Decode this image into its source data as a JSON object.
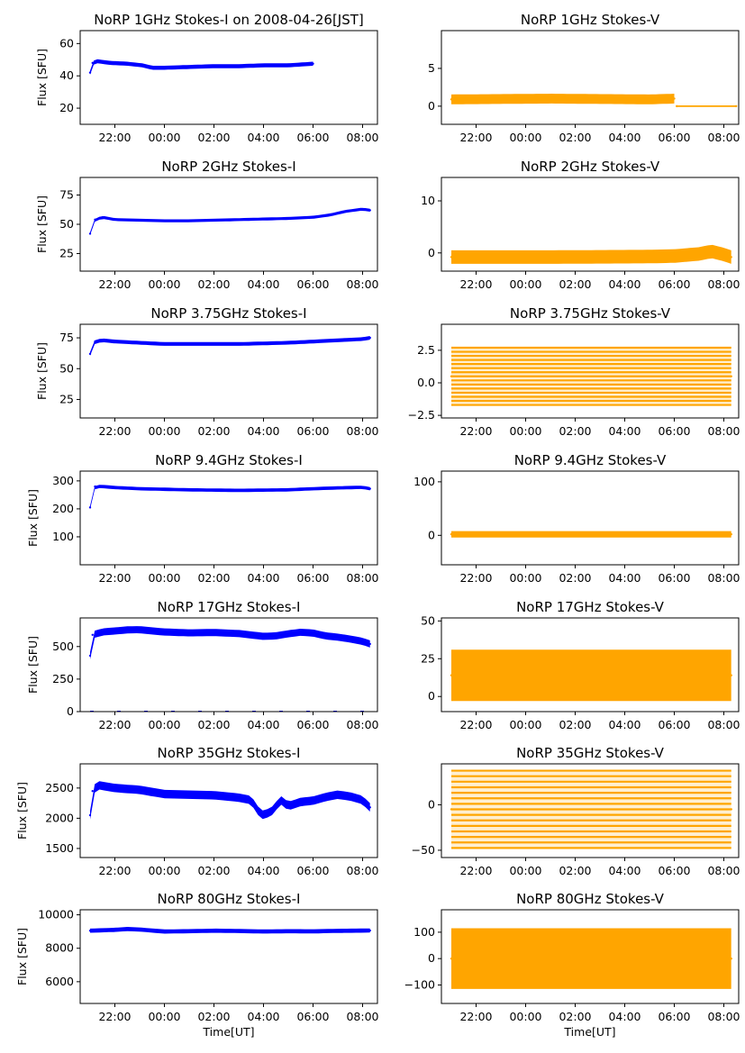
{
  "figure": {
    "xlabel": "Time[UT]",
    "x_tick_labels": [
      "22:00",
      "00:00",
      "02:00",
      "04:00",
      "06:00",
      "08:00"
    ],
    "colors": {
      "stokes_i": "#0000ff",
      "stokes_v": "#ffa500",
      "axis": "#000000",
      "background": "#ffffff"
    }
  },
  "chart_data": [
    {
      "id": "i-1ghz",
      "type": "scatter",
      "title": "NoRP 1GHz Stokes-I on 2008-04-26[JST]",
      "ylabel": "Flux [SFU]",
      "xlabel": "",
      "ylim": [
        10,
        68
      ],
      "yticks": [
        20,
        40,
        60
      ],
      "xlim": [
        20.6,
        32.6
      ],
      "series": [
        {
          "color": "#0000ff",
          "band": 2.5,
          "points": [
            [
              21.0,
              42
            ],
            [
              21.1,
              48
            ],
            [
              21.3,
              49
            ],
            [
              21.8,
              48
            ],
            [
              22.5,
              47.5
            ],
            [
              23.1,
              46.5
            ],
            [
              23.5,
              45
            ],
            [
              24.0,
              45
            ],
            [
              25.0,
              45.5
            ],
            [
              26.0,
              46
            ],
            [
              27.0,
              46
            ],
            [
              28.0,
              46.5
            ],
            [
              29.0,
              46.5
            ],
            [
              29.5,
              47
            ],
            [
              30.0,
              47.5
            ]
          ]
        }
      ]
    },
    {
      "id": "v-1ghz",
      "type": "scatter",
      "title": "NoRP 1GHz Stokes-V",
      "ylabel": "",
      "xlabel": "",
      "ylim": [
        -2.4,
        10
      ],
      "yticks": [
        0,
        5
      ],
      "xlim": [
        20.6,
        32.6
      ],
      "series": [
        {
          "color": "#ffa500",
          "band": 1.3,
          "points": [
            [
              21.0,
              0.9
            ],
            [
              25.0,
              1.0
            ],
            [
              29.0,
              0.9
            ],
            [
              30.0,
              1.0
            ]
          ]
        },
        {
          "color": "#ffa500",
          "band": 0.2,
          "points": [
            [
              30.1,
              0
            ],
            [
              32.5,
              0
            ]
          ]
        }
      ]
    },
    {
      "id": "i-2ghz",
      "type": "scatter",
      "title": "NoRP 2GHz Stokes-I",
      "ylabel": "Flux [SFU]",
      "xlabel": "",
      "ylim": [
        10,
        90
      ],
      "yticks": [
        25,
        50,
        75
      ],
      "xlim": [
        20.6,
        32.6
      ],
      "series": [
        {
          "color": "#0000ff",
          "band": 2.5,
          "points": [
            [
              21.0,
              42
            ],
            [
              21.2,
              54
            ],
            [
              21.5,
              56
            ],
            [
              22.0,
              54
            ],
            [
              23.0,
              53.5
            ],
            [
              24.0,
              53
            ],
            [
              25.0,
              53
            ],
            [
              26.0,
              53.5
            ],
            [
              27.0,
              54
            ],
            [
              28.0,
              54.5
            ],
            [
              29.0,
              55
            ],
            [
              30.0,
              56
            ],
            [
              30.7,
              58
            ],
            [
              31.3,
              61
            ],
            [
              32.0,
              63
            ],
            [
              32.3,
              62
            ]
          ]
        }
      ]
    },
    {
      "id": "v-2ghz",
      "type": "scatter",
      "title": "NoRP 2GHz Stokes-V",
      "ylabel": "",
      "xlabel": "",
      "ylim": [
        -3.5,
        14.5
      ],
      "yticks": [
        0,
        10
      ],
      "xlim": [
        20.6,
        32.6
      ],
      "series": [
        {
          "color": "#ffa500",
          "band": 2.6,
          "points": [
            [
              21.0,
              -0.8
            ],
            [
              25.0,
              -0.8
            ],
            [
              29.0,
              -0.7
            ],
            [
              30.0,
              -0.6
            ],
            [
              31.0,
              -0.2
            ],
            [
              31.5,
              0.3
            ],
            [
              32.0,
              -0.3
            ],
            [
              32.3,
              -0.8
            ]
          ]
        }
      ]
    },
    {
      "id": "i-375ghz",
      "type": "scatter",
      "title": "NoRP 3.75GHz Stokes-I",
      "ylabel": "Flux [SFU]",
      "xlabel": "",
      "ylim": [
        10,
        86
      ],
      "yticks": [
        25,
        50,
        75
      ],
      "xlim": [
        20.6,
        32.6
      ],
      "series": [
        {
          "color": "#0000ff",
          "band": 3,
          "points": [
            [
              21.0,
              62
            ],
            [
              21.2,
              72
            ],
            [
              21.5,
              73
            ],
            [
              22.0,
              72
            ],
            [
              23.0,
              71
            ],
            [
              24.0,
              70
            ],
            [
              25.0,
              70
            ],
            [
              26.0,
              70
            ],
            [
              27.0,
              70
            ],
            [
              28.0,
              70.5
            ],
            [
              29.0,
              71
            ],
            [
              30.0,
              72
            ],
            [
              31.0,
              73
            ],
            [
              32.0,
              74
            ],
            [
              32.3,
              75
            ]
          ]
        }
      ]
    },
    {
      "id": "v-375ghz",
      "type": "scatter",
      "title": "NoRP 3.75GHz Stokes-V",
      "ylabel": "",
      "xlabel": "",
      "ylim": [
        -2.7,
        4.5
      ],
      "yticks": [
        -2.5,
        0.0,
        2.5
      ],
      "xlim": [
        20.6,
        32.6
      ],
      "series": [
        {
          "color": "#ffa500",
          "band": 4.4,
          "striped": true,
          "points": [
            [
              21.0,
              0.5
            ],
            [
              32.3,
              0.5
            ]
          ]
        }
      ]
    },
    {
      "id": "i-94ghz",
      "type": "scatter",
      "title": "NoRP 9.4GHz Stokes-I",
      "ylabel": "Flux [SFU]",
      "xlabel": "",
      "ylim": [
        0,
        335
      ],
      "yticks": [
        100,
        200,
        300
      ],
      "xlim": [
        20.6,
        32.6
      ],
      "series": [
        {
          "color": "#0000ff",
          "band": 12,
          "points": [
            [
              21.0,
              205
            ],
            [
              21.2,
              280
            ],
            [
              21.5,
              280
            ],
            [
              22.0,
              276
            ],
            [
              23.0,
              272
            ],
            [
              24.0,
              270
            ],
            [
              25.0,
              268
            ],
            [
              26.0,
              267
            ],
            [
              27.0,
              266
            ],
            [
              28.0,
              267
            ],
            [
              29.0,
              268
            ],
            [
              30.0,
              272
            ],
            [
              31.0,
              275
            ],
            [
              32.0,
              277
            ],
            [
              32.3,
              272
            ]
          ]
        }
      ]
    },
    {
      "id": "v-94ghz",
      "type": "scatter",
      "title": "NoRP 9.4GHz Stokes-V",
      "ylabel": "",
      "xlabel": "",
      "ylim": [
        -55,
        120
      ],
      "yticks": [
        0,
        100
      ],
      "xlim": [
        20.6,
        32.6
      ],
      "series": [
        {
          "color": "#ffa500",
          "band": 12,
          "points": [
            [
              21.0,
              2
            ],
            [
              32.3,
              2
            ]
          ]
        }
      ]
    },
    {
      "id": "i-17ghz",
      "type": "scatter",
      "title": "NoRP 17GHz Stokes-I",
      "ylabel": "Flux [SFU]",
      "xlabel": "",
      "ylim": [
        0,
        720
      ],
      "yticks": [
        0,
        250,
        500
      ],
      "xlim": [
        20.6,
        32.6
      ],
      "series": [
        {
          "color": "#0000ff",
          "band": 55,
          "points": [
            [
              21.0,
              430
            ],
            [
              21.1,
              590
            ],
            [
              21.5,
              612
            ],
            [
              22.0,
              620
            ],
            [
              22.5,
              628
            ],
            [
              23.0,
              630
            ],
            [
              23.5,
              620
            ],
            [
              24.0,
              612
            ],
            [
              25.0,
              605
            ],
            [
              26.0,
              608
            ],
            [
              27.0,
              600
            ],
            [
              28.0,
              578
            ],
            [
              28.5,
              582
            ],
            [
              29.0,
              598
            ],
            [
              29.5,
              610
            ],
            [
              30.0,
              604
            ],
            [
              30.5,
              582
            ],
            [
              31.0,
              572
            ],
            [
              31.5,
              558
            ],
            [
              32.0,
              540
            ],
            [
              32.3,
              520
            ]
          ]
        },
        {
          "color": "#0000ff",
          "band": 6,
          "dashed": true,
          "points": [
            [
              21.0,
              0
            ],
            [
              32.3,
              0
            ]
          ]
        }
      ]
    },
    {
      "id": "v-17ghz",
      "type": "scatter",
      "title": "NoRP 17GHz Stokes-V",
      "ylabel": "",
      "xlabel": "",
      "ylim": [
        -10,
        52
      ],
      "yticks": [
        0,
        25,
        50
      ],
      "xlim": [
        20.6,
        32.6
      ],
      "series": [
        {
          "color": "#ffa500",
          "band": 34,
          "points": [
            [
              21.0,
              14
            ],
            [
              32.3,
              14
            ]
          ]
        }
      ]
    },
    {
      "id": "i-35ghz",
      "type": "scatter",
      "title": "NoRP 35GHz Stokes-I",
      "ylabel": "Flux [SFU]",
      "xlabel": "",
      "ylim": [
        1350,
        2900
      ],
      "yticks": [
        1500,
        2000,
        2500
      ],
      "xlim": [
        20.6,
        32.6
      ],
      "series": [
        {
          "color": "#0000ff",
          "band": 140,
          "points": [
            [
              21.0,
              2050
            ],
            [
              21.1,
              2450
            ],
            [
              21.3,
              2550
            ],
            [
              22.0,
              2500
            ],
            [
              23.0,
              2470
            ],
            [
              24.0,
              2400
            ],
            [
              25.0,
              2390
            ],
            [
              26.0,
              2380
            ],
            [
              27.0,
              2340
            ],
            [
              27.5,
              2300
            ],
            [
              27.9,
              2050
            ],
            [
              28.3,
              2100
            ],
            [
              28.7,
              2300
            ],
            [
              29.0,
              2200
            ],
            [
              29.5,
              2270
            ],
            [
              30.0,
              2290
            ],
            [
              30.5,
              2350
            ],
            [
              31.0,
              2390
            ],
            [
              31.5,
              2360
            ],
            [
              32.0,
              2300
            ],
            [
              32.3,
              2180
            ]
          ]
        }
      ]
    },
    {
      "id": "v-35ghz",
      "type": "scatter",
      "title": "NoRP 35GHz Stokes-V",
      "ylabel": "",
      "xlabel": "",
      "ylim": [
        -58,
        45
      ],
      "yticks": [
        -50,
        0
      ],
      "xlim": [
        20.6,
        32.6
      ],
      "series": [
        {
          "color": "#ffa500",
          "band": 85,
          "striped": true,
          "points": [
            [
              21.0,
              -5
            ],
            [
              32.3,
              -5
            ]
          ]
        }
      ]
    },
    {
      "id": "i-80ghz",
      "type": "scatter",
      "title": "NoRP 80GHz Stokes-I",
      "ylabel": "Flux [SFU]",
      "xlabel": "Time[UT]",
      "ylim": [
        4700,
        10300
      ],
      "yticks": [
        6000,
        8000,
        10000
      ],
      "xlim": [
        20.6,
        32.6
      ],
      "series": [
        {
          "color": "#0000ff",
          "band": 250,
          "points": [
            [
              21.0,
              9050
            ],
            [
              22.0,
              9100
            ],
            [
              22.5,
              9150
            ],
            [
              23.0,
              9120
            ],
            [
              24.0,
              9000
            ],
            [
              25.0,
              9020
            ],
            [
              26.0,
              9050
            ],
            [
              27.0,
              9030
            ],
            [
              28.0,
              9000
            ],
            [
              29.0,
              9020
            ],
            [
              30.0,
              9010
            ],
            [
              31.0,
              9040
            ],
            [
              32.3,
              9060
            ]
          ]
        }
      ]
    },
    {
      "id": "v-80ghz",
      "type": "scatter",
      "title": "NoRP 80GHz Stokes-V",
      "ylabel": "",
      "xlabel": "Time[UT]",
      "ylim": [
        -170,
        185
      ],
      "yticks": [
        -100,
        0,
        100
      ],
      "xlim": [
        20.6,
        32.6
      ],
      "series": [
        {
          "color": "#ffa500",
          "band": 230,
          "points": [
            [
              21.0,
              0
            ],
            [
              32.3,
              0
            ]
          ]
        }
      ]
    }
  ]
}
